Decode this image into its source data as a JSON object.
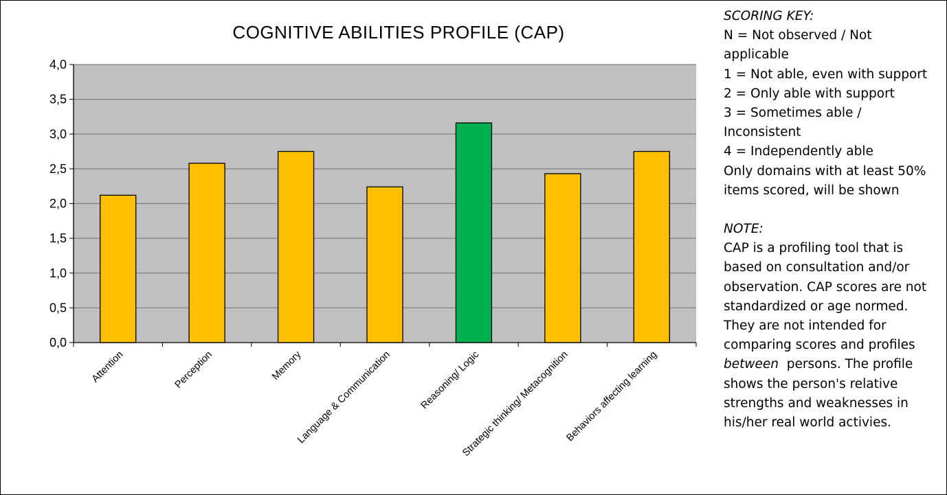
{
  "chart_data": {
    "type": "bar",
    "title": "COGNITIVE ABILITIES  PROFILE (CAP)",
    "categories": [
      "Attention",
      "Perception",
      "Memory",
      "Language & Communication",
      "Reasoning/ Logic",
      "Strategic thinking/ Metacognition",
      "Behaviors affecting learning"
    ],
    "values": [
      2.12,
      2.58,
      2.75,
      2.24,
      3.16,
      2.43,
      2.75
    ],
    "bar_colors": [
      "#FFC000",
      "#FFC000",
      "#FFC000",
      "#FFC000",
      "#00B050",
      "#FFC000",
      "#FFC000"
    ],
    "ylim": [
      0,
      4
    ],
    "yticks": [
      "0,0",
      "0,5",
      "1,0",
      "1,5",
      "2,0",
      "2,5",
      "3,0",
      "3,5",
      "4,0"
    ],
    "xlabel": "",
    "ylabel": "",
    "grid": true,
    "plot_background": "#C0C0C0",
    "gridline_color": "#808080",
    "legend": "none"
  },
  "scoring_key": {
    "heading": "SCORING KEY:",
    "lines": [
      "N = Not observed / Not",
      "applicable",
      "1 = Not able, even with support",
      "2 = Only able with support",
      "3 = Sometimes able /",
      "Inconsistent",
      "4 = Independently able",
      "Only domains with at least 50%",
      "items scored, will be shown"
    ]
  },
  "note": {
    "heading": "NOTE:",
    "lines_before": [
      "CAP is a profiling tool that is",
      "based on consultation and/or",
      "observation. CAP scores are not",
      "standardized or age normed.",
      "They are not intended for",
      "comparing scores and profiles"
    ],
    "emphasis": "between",
    "emphasis_rest": "  persons. The profile",
    "lines_after": [
      "shows the person's relative",
      "strengths and weaknesses in",
      "his/her real world activies."
    ]
  }
}
